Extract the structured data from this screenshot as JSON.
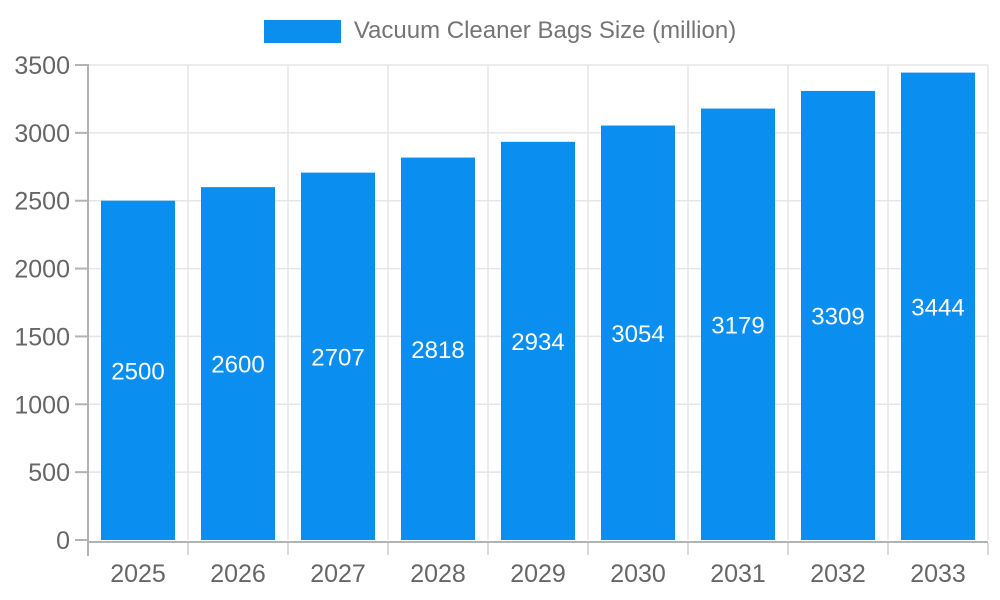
{
  "legend": {
    "label": "Vacuum Cleaner Bags Size (million)"
  },
  "chart_data": {
    "type": "bar",
    "title": "Vacuum Cleaner Bags Size (million)",
    "categories": [
      "2025",
      "2026",
      "2027",
      "2028",
      "2029",
      "2030",
      "2031",
      "2032",
      "2033"
    ],
    "series": [
      {
        "name": "Vacuum Cleaner Bags Size (million)",
        "values": [
          2500,
          2600,
          2707,
          2818,
          2934,
          3054,
          3179,
          3309,
          3444
        ]
      }
    ],
    "value_labels": [
      "2500",
      "2600",
      "2707",
      "2818",
      "2934",
      "3054",
      "3179",
      "3309",
      "3444"
    ],
    "xlabel": "",
    "ylabel": "",
    "ylim": [
      0,
      3500
    ],
    "yticks": [
      0,
      500,
      1000,
      1500,
      2000,
      2500,
      3000,
      3500
    ],
    "grid": true,
    "legend_position": "top",
    "colors": {
      "bar": "#0a8ff0",
      "grid": "#e6e6e6",
      "axis": "#b3b3b3",
      "minor_tick": "#d9d9d9",
      "tick_text": "#666666",
      "legend_text": "#757575",
      "value_label": "#ffffff",
      "background": "#ffffff"
    }
  }
}
